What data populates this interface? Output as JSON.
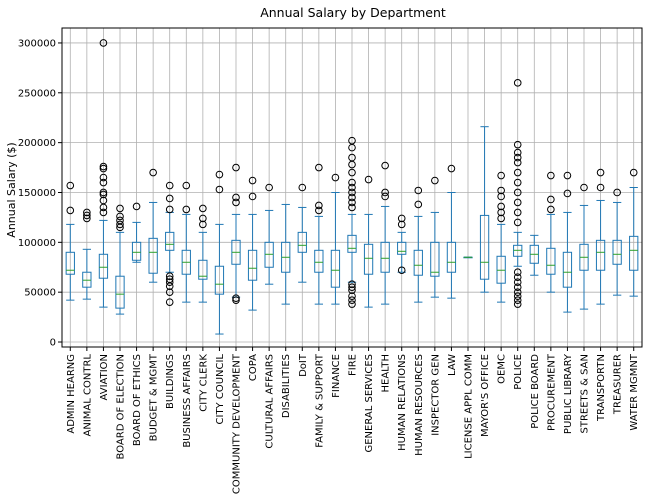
{
  "chart_data": {
    "type": "box",
    "title": "Annual Salary by Department",
    "xlabel": "",
    "ylabel": "Annual Salary ($)",
    "ylim": [
      -5000,
      315000
    ],
    "yticks": [
      0,
      50000,
      100000,
      150000,
      200000,
      250000,
      300000
    ],
    "grid": true,
    "colors": {
      "box": "#1f77b4",
      "median": "#2ca02c",
      "grid": "#b0b0b0",
      "axis": "#000000"
    },
    "categories": [
      "ADMIN HEARNG",
      "ANIMAL CONTRL",
      "AVIATION",
      "BOARD OF ELECTION",
      "BOARD OF ETHICS",
      "BUDGET & MGMT",
      "BUILDINGS",
      "BUSINESS AFFAIRS",
      "CITY CLERK",
      "CITY COUNCIL",
      "COMMUNITY DEVELOPMENT",
      "COPA",
      "CULTURAL AFFAIRS",
      "DISABILITIES",
      "DoIT",
      "FAMILY & SUPPORT",
      "FINANCE",
      "FIRE",
      "GENERAL SERVICES",
      "HEALTH",
      "HUMAN RELATIONS",
      "HUMAN RESOURCES",
      "INSPECTOR GEN",
      "LAW",
      "LICENSE APPL COMM",
      "MAYOR'S OFFICE",
      "OEMC",
      "POLICE",
      "POLICE BOARD",
      "PROCUREMENT",
      "PUBLIC LIBRARY",
      "STREETS & SAN",
      "TRANSPORTN",
      "TREASURER",
      "WATER MGMNT"
    ],
    "boxes": [
      {
        "whislo": 42000,
        "q1": 68000,
        "med": 72000,
        "q3": 90000,
        "whishi": 118000,
        "fliers": [
          132000,
          157000
        ]
      },
      {
        "whislo": 43000,
        "q1": 55000,
        "med": 62000,
        "q3": 70000,
        "whishi": 93000,
        "fliers": [
          124000,
          127000,
          130000
        ]
      },
      {
        "whislo": 35000,
        "q1": 64000,
        "med": 75000,
        "q3": 88000,
        "whishi": 122000,
        "fliers": [
          130000,
          135000,
          142000,
          148000,
          150000,
          160000,
          165000,
          174000,
          176000,
          300000
        ]
      },
      {
        "whislo": 28000,
        "q1": 34000,
        "med": 48000,
        "q3": 66000,
        "whishi": 110000,
        "fliers": [
          115000,
          118000,
          122000,
          126000,
          134000
        ]
      },
      {
        "whislo": 80000,
        "q1": 82000,
        "med": 90000,
        "q3": 100000,
        "whishi": 120000,
        "fliers": [
          136000
        ]
      },
      {
        "whislo": 60000,
        "q1": 69000,
        "med": 90000,
        "q3": 104000,
        "whishi": 140000,
        "fliers": [
          170000
        ]
      },
      {
        "whislo": 70000,
        "q1": 92000,
        "med": 98000,
        "q3": 110000,
        "whishi": 130000,
        "fliers": [
          40000,
          50000,
          56000,
          60000,
          63000,
          66000,
          133000,
          144000,
          157000
        ]
      },
      {
        "whislo": 40000,
        "q1": 68000,
        "med": 80000,
        "q3": 92000,
        "whishi": 128000,
        "fliers": [
          133000,
          157000
        ]
      },
      {
        "whislo": 40000,
        "q1": 63000,
        "med": 66000,
        "q3": 82000,
        "whishi": 110000,
        "fliers": [
          118000,
          124000,
          134000
        ]
      },
      {
        "whislo": 8000,
        "q1": 48000,
        "med": 58000,
        "q3": 76000,
        "whishi": 118000,
        "fliers": [
          153000,
          168000
        ]
      },
      {
        "whislo": 45000,
        "q1": 78000,
        "med": 90000,
        "q3": 102000,
        "whishi": 128000,
        "fliers": [
          42000,
          44000,
          140000,
          145000,
          175000
        ]
      },
      {
        "whislo": 32000,
        "q1": 62000,
        "med": 74000,
        "q3": 92000,
        "whishi": 128000,
        "fliers": [
          146000,
          162000
        ]
      },
      {
        "whislo": 58000,
        "q1": 75000,
        "med": 88000,
        "q3": 100000,
        "whishi": 132000,
        "fliers": [
          155000
        ]
      },
      {
        "whislo": 38000,
        "q1": 70000,
        "med": 85000,
        "q3": 100000,
        "whishi": 138000,
        "fliers": []
      },
      {
        "whislo": 60000,
        "q1": 90000,
        "med": 97000,
        "q3": 110000,
        "whishi": 135000,
        "fliers": [
          155000
        ]
      },
      {
        "whislo": 38000,
        "q1": 70000,
        "med": 80000,
        "q3": 92000,
        "whishi": 126000,
        "fliers": [
          132000,
          137000,
          175000
        ]
      },
      {
        "whislo": 38000,
        "q1": 55000,
        "med": 72000,
        "q3": 92000,
        "whishi": 150000,
        "fliers": [
          165000
        ]
      },
      {
        "whislo": 60000,
        "q1": 90000,
        "med": 94000,
        "q3": 107000,
        "whishi": 128000,
        "fliers": [
          38000,
          42000,
          46000,
          52000,
          55000,
          58000,
          135000,
          140000,
          145000,
          150000,
          155000,
          160000,
          170000,
          178000,
          185000,
          195000,
          202000
        ]
      },
      {
        "whislo": 35000,
        "q1": 68000,
        "med": 84000,
        "q3": 98000,
        "whishi": 128000,
        "fliers": [
          163000
        ]
      },
      {
        "whislo": 38000,
        "q1": 70000,
        "med": 84000,
        "q3": 100000,
        "whishi": 136000,
        "fliers": [
          146000,
          150000,
          177000
        ]
      },
      {
        "whislo": 70000,
        "q1": 88000,
        "med": 91000,
        "q3": 100000,
        "whishi": 110000,
        "fliers": [
          72000,
          118000,
          124000
        ]
      },
      {
        "whislo": 40000,
        "q1": 67000,
        "med": 77000,
        "q3": 92000,
        "whishi": 126000,
        "fliers": [
          138000,
          152000
        ]
      },
      {
        "whislo": 45000,
        "q1": 66000,
        "med": 70000,
        "q3": 100000,
        "whishi": 130000,
        "fliers": [
          162000
        ]
      },
      {
        "whislo": 44000,
        "q1": 70000,
        "med": 80000,
        "q3": 100000,
        "whishi": 150000,
        "fliers": [
          174000
        ]
      },
      {
        "whislo": 85000,
        "q1": 85000,
        "med": 85000,
        "q3": 85000,
        "whishi": 85000,
        "fliers": []
      },
      {
        "whislo": 50000,
        "q1": 63000,
        "med": 80000,
        "q3": 127000,
        "whishi": 216000,
        "fliers": []
      },
      {
        "whislo": 40000,
        "q1": 59000,
        "med": 72000,
        "q3": 86000,
        "whishi": 118000,
        "fliers": [
          124000,
          130000,
          136000,
          146000,
          152000,
          167000
        ]
      },
      {
        "whislo": 76000,
        "q1": 86000,
        "med": 92000,
        "q3": 97000,
        "whishi": 110000,
        "fliers": [
          38000,
          42000,
          46000,
          50000,
          55000,
          60000,
          65000,
          70000,
          120000,
          130000,
          140000,
          150000,
          160000,
          170000,
          180000,
          185000,
          190000,
          198000,
          260000
        ]
      },
      {
        "whislo": 67000,
        "q1": 79000,
        "med": 88000,
        "q3": 97000,
        "whishi": 107000,
        "fliers": []
      },
      {
        "whislo": 50000,
        "q1": 68000,
        "med": 77000,
        "q3": 94000,
        "whishi": 128000,
        "fliers": [
          133000,
          143000,
          167000
        ]
      },
      {
        "whislo": 30000,
        "q1": 55000,
        "med": 70000,
        "q3": 90000,
        "whishi": 130000,
        "fliers": [
          149000,
          167000
        ]
      },
      {
        "whislo": 33000,
        "q1": 72000,
        "med": 85000,
        "q3": 98000,
        "whishi": 137000,
        "fliers": [
          155000
        ]
      },
      {
        "whislo": 38000,
        "q1": 72000,
        "med": 90000,
        "q3": 102000,
        "whishi": 142000,
        "fliers": [
          155000,
          170000
        ]
      },
      {
        "whislo": 47000,
        "q1": 78000,
        "med": 88000,
        "q3": 102000,
        "whishi": 140000,
        "fliers": [
          150000
        ]
      },
      {
        "whislo": 46000,
        "q1": 72000,
        "med": 92000,
        "q3": 106000,
        "whishi": 155000,
        "fliers": [
          170000
        ]
      }
    ]
  }
}
